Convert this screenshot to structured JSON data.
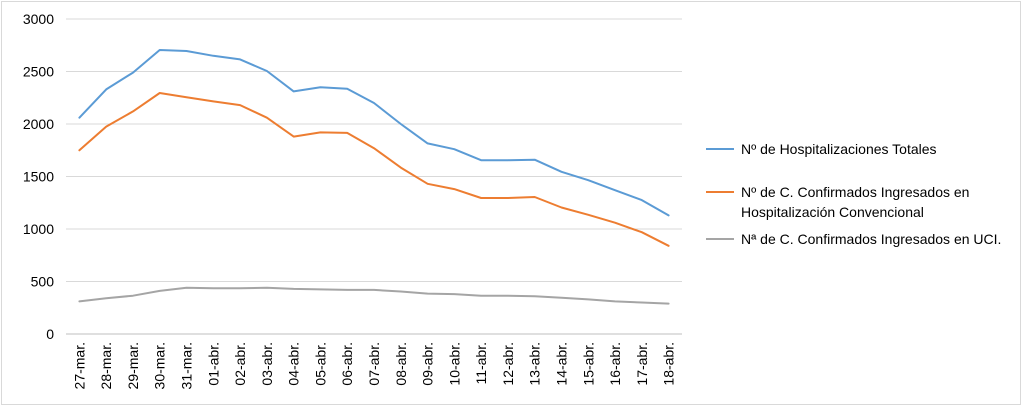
{
  "chart_data": {
    "type": "line",
    "categories": [
      "27-mar.",
      "28-mar.",
      "29-mar.",
      "30-mar.",
      "31-mar.",
      "01-abr.",
      "02-abr.",
      "03-abr.",
      "04-abr.",
      "05-abr.",
      "06-abr.",
      "07-abr.",
      "08-abr.",
      "09-abr.",
      "10-abr.",
      "11-abr.",
      "12-abr.",
      "13-abr.",
      "14-abr.",
      "15-abr.",
      "16-abr.",
      "17-abr.",
      "18-abr."
    ],
    "series": [
      {
        "name": "Nº de Hospitalizaciones Totales",
        "color": "#5b9bd5",
        "values": [
          2060,
          2330,
          2490,
          2705,
          2695,
          2650,
          2615,
          2505,
          2310,
          2350,
          2335,
          2200,
          2000,
          1815,
          1760,
          1655,
          1655,
          1660,
          1545,
          1465,
          1370,
          1275,
          1130
        ]
      },
      {
        "name": "Nº de C. Confirmados Ingresados en Hospitalización Convencional",
        "name_lines": [
          "Nº de C. Confirmados Ingresados en",
          "Hospitalización Convencional"
        ],
        "color": "#ed7d31",
        "values": [
          1750,
          1975,
          2120,
          2295,
          2255,
          2215,
          2180,
          2060,
          1880,
          1920,
          1915,
          1770,
          1585,
          1430,
          1380,
          1295,
          1295,
          1305,
          1205,
          1135,
          1060,
          970,
          840
        ]
      },
      {
        "name": "Nª de C. Confirmados Ingresados en UCI.",
        "color": "#a5a5a5",
        "values": [
          310,
          340,
          365,
          410,
          440,
          435,
          435,
          440,
          430,
          425,
          420,
          420,
          405,
          385,
          380,
          365,
          365,
          360,
          345,
          330,
          310,
          300,
          290
        ]
      }
    ],
    "yticks": [
      0,
      500,
      1000,
      1500,
      2000,
      2500,
      3000
    ],
    "ylim": [
      0,
      3000
    ],
    "grid": true,
    "legend_position": "right"
  }
}
